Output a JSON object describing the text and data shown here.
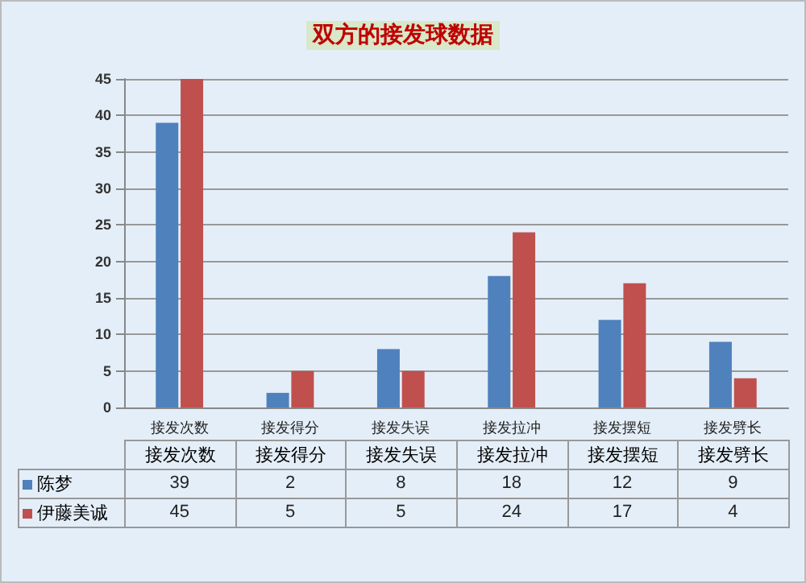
{
  "chart_data": {
    "type": "bar",
    "title": "双方的接发球数据",
    "categories": [
      "接发次数",
      "接发得分",
      "接发失误",
      "接发拉冲",
      "接发摆短",
      "接发劈长"
    ],
    "series": [
      {
        "name": "陈梦",
        "color": "#4f81bd",
        "values": [
          39,
          2,
          8,
          18,
          12,
          9
        ]
      },
      {
        "name": "伊藤美诚",
        "color": "#c0504d",
        "values": [
          45,
          5,
          5,
          24,
          17,
          4
        ]
      }
    ],
    "ylim": [
      0,
      45
    ],
    "yticks": [
      0,
      5,
      10,
      15,
      20,
      25,
      30,
      35,
      40,
      45
    ],
    "grid": "y",
    "legend": "bottom",
    "data_labels": true
  }
}
